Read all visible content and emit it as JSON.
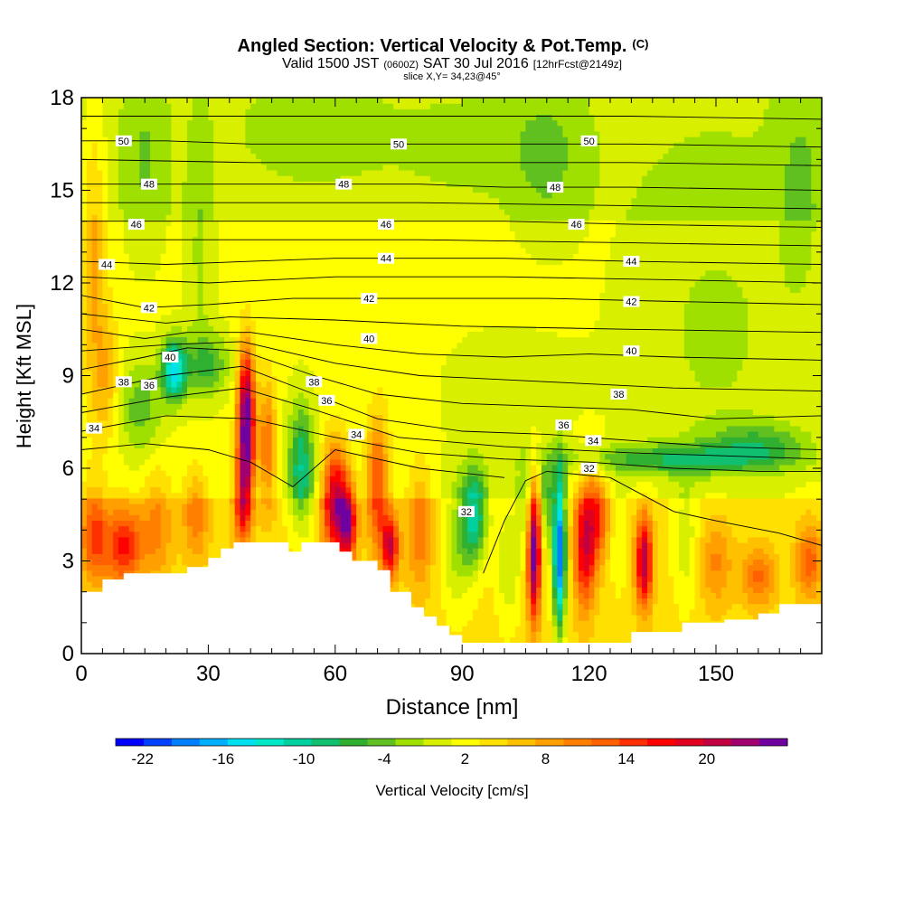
{
  "chart_data": {
    "type": "heatmap",
    "title": "Angled Section: Vertical Velocity & Pot.Temp.",
    "title_unit": "(C)",
    "subtitle": {
      "valid": "Valid 1500 JST",
      "utc": "(0600Z)",
      "date": "SAT 30 Jul 2016",
      "forecast": "[12hrFcst@2149z]"
    },
    "slice_label": "slice X,Y= 34,23@45°",
    "xlabel": "Distance [nm]",
    "ylabel": "Height [Kft MSL]",
    "xlim": [
      0,
      175
    ],
    "ylim": [
      0,
      18
    ],
    "x_ticks": [
      0,
      30,
      60,
      90,
      120,
      150
    ],
    "y_ticks": [
      0,
      3,
      6,
      9,
      12,
      15,
      18
    ],
    "colorbar": {
      "label": "Vertical Velocity [cm/s]",
      "tick_labels": [
        -22,
        -16,
        -10,
        -4,
        2,
        8,
        14,
        20
      ],
      "min": -24,
      "max": 26,
      "colors": [
        "#0000ff",
        "#0040ff",
        "#0080ff",
        "#00b0ff",
        "#00e0f0",
        "#00e8c8",
        "#00d0a0",
        "#10c070",
        "#30b030",
        "#60c020",
        "#a0e000",
        "#d8f000",
        "#ffff00",
        "#ffe000",
        "#ffc000",
        "#ffa000",
        "#ff8000",
        "#ff6000",
        "#ff3000",
        "#ff0000",
        "#e00020",
        "#c00040",
        "#a00070",
        "#7000a0"
      ]
    },
    "terrain": [
      [
        0,
        2.0
      ],
      [
        5,
        2.0
      ],
      [
        5,
        2.4
      ],
      [
        10,
        2.4
      ],
      [
        10,
        2.6
      ],
      [
        25,
        2.6
      ],
      [
        25,
        2.8
      ],
      [
        30,
        2.8
      ],
      [
        30,
        3.1
      ],
      [
        33,
        3.1
      ],
      [
        33,
        3.4
      ],
      [
        36,
        3.4
      ],
      [
        36,
        3.6
      ],
      [
        49,
        3.6
      ],
      [
        49,
        3.3
      ],
      [
        52,
        3.3
      ],
      [
        52,
        3.6
      ],
      [
        61,
        3.6
      ],
      [
        61,
        3.3
      ],
      [
        64,
        3.3
      ],
      [
        64,
        3.0
      ],
      [
        70,
        3.0
      ],
      [
        70,
        2.7
      ],
      [
        73,
        2.7
      ],
      [
        73,
        2.0
      ],
      [
        78,
        2.0
      ],
      [
        78,
        1.5
      ],
      [
        81,
        1.5
      ],
      [
        81,
        1.2
      ],
      [
        84,
        1.2
      ],
      [
        84,
        0.9
      ],
      [
        87,
        0.9
      ],
      [
        87,
        0.6
      ],
      [
        90,
        0.6
      ],
      [
        90,
        0.35
      ],
      [
        130,
        0.35
      ],
      [
        130,
        0.7
      ],
      [
        142,
        0.7
      ],
      [
        142,
        1.0
      ],
      [
        152,
        1.0
      ],
      [
        152,
        1.1
      ],
      [
        160,
        1.1
      ],
      [
        160,
        1.3
      ],
      [
        165,
        1.3
      ],
      [
        165,
        1.6
      ],
      [
        175,
        1.6
      ]
    ],
    "blobs": [
      {
        "x": 10,
        "y": 3.5,
        "sx": 4.5,
        "sy": 1.3,
        "v": 12
      },
      {
        "x": 3,
        "y": 3.8,
        "sx": 3,
        "sy": 1.5,
        "v": 10
      },
      {
        "x": 18,
        "y": 4.2,
        "sx": 3.5,
        "sy": 1.8,
        "v": 6
      },
      {
        "x": 27,
        "y": 4.5,
        "sx": 3,
        "sy": 1.5,
        "v": 7
      },
      {
        "x": 39,
        "y": 7.5,
        "sx": 2,
        "sy": 2.3,
        "v": 26
      },
      {
        "x": 38,
        "y": 5.0,
        "sx": 2,
        "sy": 1.5,
        "v": 12
      },
      {
        "x": 44,
        "y": 6.8,
        "sx": 2,
        "sy": 2.0,
        "v": 10
      },
      {
        "x": 22,
        "y": 9.2,
        "sx": 3,
        "sy": 1.0,
        "v": -16
      },
      {
        "x": 14,
        "y": 8.0,
        "sx": 5,
        "sy": 1.5,
        "v": -6
      },
      {
        "x": 30,
        "y": 9.4,
        "sx": 5,
        "sy": 1.0,
        "v": -7
      },
      {
        "x": 28,
        "y": 13,
        "sx": 3,
        "sy": 4,
        "v": -3
      },
      {
        "x": 15,
        "y": 16,
        "sx": 5,
        "sy": 3,
        "v": -3
      },
      {
        "x": 52,
        "y": 6.0,
        "sx": 3,
        "sy": 2.0,
        "v": -11
      },
      {
        "x": 60,
        "y": 5.0,
        "sx": 3,
        "sy": 1.8,
        "v": 18
      },
      {
        "x": 63,
        "y": 4.2,
        "sx": 2,
        "sy": 1.3,
        "v": 16
      },
      {
        "x": 70,
        "y": 5.5,
        "sx": 2.5,
        "sy": 2.0,
        "v": 12
      },
      {
        "x": 73,
        "y": 3.5,
        "sx": 2,
        "sy": 1.0,
        "v": 16
      },
      {
        "x": 80,
        "y": 4.0,
        "sx": 3,
        "sy": 2.0,
        "v": 7
      },
      {
        "x": 89,
        "y": 3.5,
        "sx": 4,
        "sy": 2.0,
        "v": -6
      },
      {
        "x": 93,
        "y": 4.5,
        "sx": 3,
        "sy": 1.5,
        "v": -13
      },
      {
        "x": 101,
        "y": 3.0,
        "sx": 3,
        "sy": 2.0,
        "v": -5
      },
      {
        "x": 107,
        "y": 3.3,
        "sx": 1.5,
        "sy": 2.2,
        "v": 22
      },
      {
        "x": 113,
        "y": 3.3,
        "sx": 1.5,
        "sy": 2.5,
        "v": -24
      },
      {
        "x": 110,
        "y": 4.8,
        "sx": 1.5,
        "sy": 1.5,
        "v": -8
      },
      {
        "x": 119,
        "y": 3.5,
        "sx": 2.5,
        "sy": 2.0,
        "v": 15
      },
      {
        "x": 122,
        "y": 4.5,
        "sx": 2.5,
        "sy": 1.5,
        "v": 10
      },
      {
        "x": 133,
        "y": 3.0,
        "sx": 2,
        "sy": 1.5,
        "v": 18
      },
      {
        "x": 127,
        "y": 3.5,
        "sx": 2,
        "sy": 1.5,
        "v": -3
      },
      {
        "x": 143,
        "y": 3.5,
        "sx": 3,
        "sy": 2.0,
        "v": -4
      },
      {
        "x": 150,
        "y": 3.0,
        "sx": 4,
        "sy": 1.5,
        "v": 6
      },
      {
        "x": 160,
        "y": 2.5,
        "sx": 4,
        "sy": 1.0,
        "v": 8
      },
      {
        "x": 172,
        "y": 3.0,
        "sx": 3,
        "sy": 1.2,
        "v": 9
      },
      {
        "x": 140,
        "y": 6.3,
        "sx": 25,
        "sy": 0.5,
        "v": -8
      },
      {
        "x": 160,
        "y": 6.8,
        "sx": 12,
        "sy": 0.7,
        "v": -6
      },
      {
        "x": 150,
        "y": 10.5,
        "sx": 20,
        "sy": 5,
        "v": -3
      },
      {
        "x": 110,
        "y": 16,
        "sx": 8,
        "sy": 2.5,
        "v": -3
      },
      {
        "x": 95,
        "y": 16.5,
        "sx": 20,
        "sy": 1.5,
        "v": -1.5
      },
      {
        "x": 55,
        "y": 17,
        "sx": 15,
        "sy": 1.5,
        "v": -2
      },
      {
        "x": 170,
        "y": 15,
        "sx": 6,
        "sy": 4,
        "v": -3
      },
      {
        "x": 100,
        "y": 8.5,
        "sx": 18,
        "sy": 2.0,
        "v": -1.5
      },
      {
        "x": 75,
        "y": 9.5,
        "sx": 8,
        "sy": 3,
        "v": 1
      },
      {
        "x": 3,
        "y": 13,
        "sx": 3,
        "sy": 5,
        "v": 6
      },
      {
        "x": 6,
        "y": 9,
        "sx": 3,
        "sy": 2,
        "v": 5
      },
      {
        "x": 105,
        "y": 5.0,
        "sx": 2,
        "sy": 1.5,
        "v": -5
      }
    ],
    "isentropes": [
      {
        "label": "32",
        "points": [
          [
            95,
            2.6
          ],
          [
            100,
            4.3
          ],
          [
            105,
            5.6
          ],
          [
            110,
            5.9
          ],
          [
            125,
            5.7
          ],
          [
            140,
            4.6
          ],
          [
            150,
            4.3
          ],
          [
            165,
            3.9
          ],
          [
            175,
            3.5
          ]
        ]
      },
      {
        "label": "34",
        "points": [
          [
            0,
            7.2
          ],
          [
            20,
            7.7
          ],
          [
            40,
            7.6
          ],
          [
            60,
            7.0
          ],
          [
            80,
            6.5
          ],
          [
            100,
            6.3
          ],
          [
            120,
            6.2
          ],
          [
            140,
            6.0
          ],
          [
            160,
            5.9
          ],
          [
            175,
            5.9
          ]
        ]
      },
      {
        "label": "36",
        "points": [
          [
            0,
            8.4
          ],
          [
            20,
            9.0
          ],
          [
            38,
            9.3
          ],
          [
            55,
            8.4
          ],
          [
            70,
            7.6
          ],
          [
            90,
            7.2
          ],
          [
            110,
            7.1
          ],
          [
            130,
            6.9
          ],
          [
            150,
            6.7
          ],
          [
            175,
            6.6
          ]
        ]
      },
      {
        "label": "38",
        "points": [
          [
            0,
            9.2
          ],
          [
            15,
            9.6
          ],
          [
            25,
            9.9
          ],
          [
            38,
            9.8
          ],
          [
            55,
            9.0
          ],
          [
            70,
            8.4
          ],
          [
            90,
            8.1
          ],
          [
            110,
            8.0
          ],
          [
            130,
            7.9
          ],
          [
            150,
            7.6
          ],
          [
            175,
            7.7
          ]
        ]
      },
      {
        "label": "40",
        "points": [
          [
            0,
            10.5
          ],
          [
            15,
            10.2
          ],
          [
            25,
            10.4
          ],
          [
            40,
            10.4
          ],
          [
            60,
            10.0
          ],
          [
            80,
            9.7
          ],
          [
            100,
            9.6
          ],
          [
            120,
            9.7
          ],
          [
            140,
            9.6
          ],
          [
            175,
            9.5
          ]
        ]
      },
      {
        "label": "42",
        "points": [
          [
            0,
            11.6
          ],
          [
            15,
            11.2
          ],
          [
            30,
            11.3
          ],
          [
            50,
            11.5
          ],
          [
            70,
            11.5
          ],
          [
            90,
            11.5
          ],
          [
            110,
            11.5
          ],
          [
            140,
            11.4
          ],
          [
            175,
            11.3
          ]
        ]
      },
      {
        "label": "44",
        "points": [
          [
            0,
            12.7
          ],
          [
            20,
            12.6
          ],
          [
            40,
            12.7
          ],
          [
            60,
            12.8
          ],
          [
            80,
            12.8
          ],
          [
            100,
            12.8
          ],
          [
            130,
            12.7
          ],
          [
            175,
            12.6
          ]
        ]
      },
      {
        "label": "46",
        "points": [
          [
            0,
            14.0
          ],
          [
            20,
            14.0
          ],
          [
            40,
            14.0
          ],
          [
            60,
            14.0
          ],
          [
            80,
            14.0
          ],
          [
            100,
            14.0
          ],
          [
            130,
            13.9
          ],
          [
            175,
            13.8
          ]
        ]
      },
      {
        "label": "48",
        "points": [
          [
            0,
            15.2
          ],
          [
            20,
            15.2
          ],
          [
            40,
            15.2
          ],
          [
            60,
            15.2
          ],
          [
            80,
            15.2
          ],
          [
            100,
            15.1
          ],
          [
            130,
            15.1
          ],
          [
            175,
            15.0
          ]
        ]
      },
      {
        "label": "50",
        "points": [
          [
            0,
            16.6
          ],
          [
            20,
            16.6
          ],
          [
            40,
            16.5
          ],
          [
            60,
            16.5
          ],
          [
            80,
            16.5
          ],
          [
            100,
            16.5
          ],
          [
            130,
            16.5
          ],
          [
            175,
            16.4
          ]
        ]
      },
      {
        "label": "",
        "points": [
          [
            0,
            17.4
          ],
          [
            40,
            17.4
          ],
          [
            80,
            17.4
          ],
          [
            130,
            17.4
          ],
          [
            175,
            17.3
          ]
        ]
      },
      {
        "label": "",
        "points": [
          [
            0,
            16.0
          ],
          [
            40,
            15.9
          ],
          [
            80,
            15.9
          ],
          [
            130,
            15.9
          ],
          [
            175,
            15.8
          ]
        ]
      },
      {
        "label": "",
        "points": [
          [
            0,
            14.6
          ],
          [
            40,
            14.6
          ],
          [
            80,
            14.6
          ],
          [
            130,
            14.5
          ],
          [
            175,
            14.4
          ]
        ]
      },
      {
        "label": "",
        "points": [
          [
            0,
            13.4
          ],
          [
            40,
            13.4
          ],
          [
            80,
            13.4
          ],
          [
            130,
            13.3
          ],
          [
            175,
            13.2
          ]
        ]
      },
      {
        "label": "",
        "points": [
          [
            0,
            12.2
          ],
          [
            30,
            12.0
          ],
          [
            60,
            12.2
          ],
          [
            100,
            12.2
          ],
          [
            140,
            12.1
          ],
          [
            175,
            12.0
          ]
        ]
      },
      {
        "label": "",
        "points": [
          [
            0,
            11.0
          ],
          [
            20,
            10.7
          ],
          [
            35,
            10.9
          ],
          [
            60,
            10.8
          ],
          [
            90,
            10.6
          ],
          [
            130,
            10.5
          ],
          [
            175,
            10.4
          ]
        ]
      },
      {
        "label": "",
        "points": [
          [
            0,
            9.8
          ],
          [
            20,
            10.0
          ],
          [
            38,
            10.1
          ],
          [
            60,
            9.4
          ],
          [
            80,
            9.0
          ],
          [
            110,
            8.8
          ],
          [
            140,
            8.6
          ],
          [
            175,
            8.5
          ]
        ]
      },
      {
        "label": "",
        "points": [
          [
            0,
            7.8
          ],
          [
            20,
            8.3
          ],
          [
            38,
            8.6
          ],
          [
            55,
            7.9
          ],
          [
            75,
            7.0
          ],
          [
            100,
            6.7
          ],
          [
            130,
            6.5
          ],
          [
            175,
            6.3
          ]
        ]
      },
      {
        "label": "",
        "points": [
          [
            0,
            6.6
          ],
          [
            15,
            6.8
          ],
          [
            30,
            6.6
          ],
          [
            40,
            6.2
          ],
          [
            50,
            5.4
          ],
          [
            60,
            6.6
          ],
          [
            80,
            6.0
          ],
          [
            100,
            5.7
          ]
        ]
      }
    ],
    "contour_labels": [
      {
        "text": "50",
        "x": 10,
        "y": 16.6
      },
      {
        "text": "50",
        "x": 75,
        "y": 16.5
      },
      {
        "text": "50",
        "x": 120,
        "y": 16.6
      },
      {
        "text": "48",
        "x": 16,
        "y": 15.2
      },
      {
        "text": "48",
        "x": 62,
        "y": 15.2
      },
      {
        "text": "48",
        "x": 112,
        "y": 15.1
      },
      {
        "text": "46",
        "x": 13,
        "y": 13.9
      },
      {
        "text": "46",
        "x": 72,
        "y": 13.9
      },
      {
        "text": "46",
        "x": 117,
        "y": 13.9
      },
      {
        "text": "44",
        "x": 6,
        "y": 12.6
      },
      {
        "text": "44",
        "x": 72,
        "y": 12.8
      },
      {
        "text": "44",
        "x": 130,
        "y": 12.7
      },
      {
        "text": "42",
        "x": 16,
        "y": 11.2
      },
      {
        "text": "42",
        "x": 68,
        "y": 11.5
      },
      {
        "text": "42",
        "x": 130,
        "y": 11.4
      },
      {
        "text": "40",
        "x": 21,
        "y": 9.6
      },
      {
        "text": "40",
        "x": 68,
        "y": 10.2
      },
      {
        "text": "40",
        "x": 130,
        "y": 9.8
      },
      {
        "text": "38",
        "x": 10,
        "y": 8.8
      },
      {
        "text": "38",
        "x": 55,
        "y": 8.8
      },
      {
        "text": "38",
        "x": 127,
        "y": 8.4
      },
      {
        "text": "36",
        "x": 16,
        "y": 8.7
      },
      {
        "text": "36",
        "x": 58,
        "y": 8.2
      },
      {
        "text": "36",
        "x": 114,
        "y": 7.4
      },
      {
        "text": "34",
        "x": 3,
        "y": 7.3
      },
      {
        "text": "34",
        "x": 65,
        "y": 7.1
      },
      {
        "text": "34",
        "x": 121,
        "y": 6.9
      },
      {
        "text": "32",
        "x": 91,
        "y": 4.6
      },
      {
        "text": "32",
        "x": 120,
        "y": 6.0
      }
    ]
  }
}
